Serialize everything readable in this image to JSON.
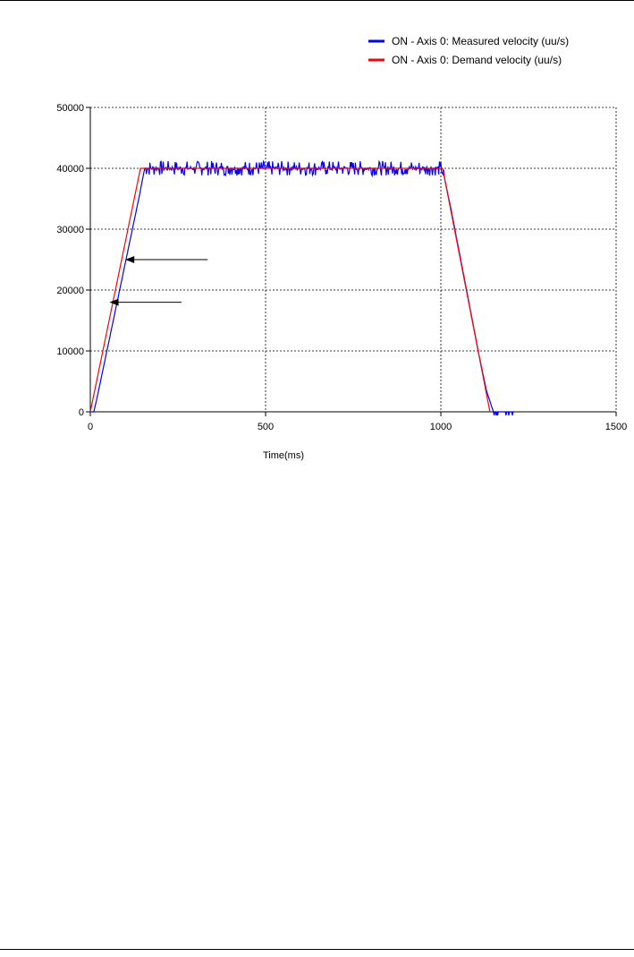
{
  "chart_data": {
    "type": "line",
    "title": "",
    "xlabel": "Time(ms)",
    "ylabel": "",
    "xlim": [
      0,
      1500
    ],
    "ylim": [
      0,
      50000
    ],
    "xticks": [
      "0",
      "500",
      "1000",
      "1500"
    ],
    "yticks": [
      "0",
      "10000",
      "20000",
      "30000",
      "40000",
      "50000"
    ],
    "grid": true,
    "legend_position": "top-right",
    "series": [
      {
        "name": "ON  - Axis 0: Measured velocity (uu/s)",
        "color": "#0000ff",
        "x": [
          0,
          10,
          20,
          40,
          60,
          80,
          100,
          120,
          140,
          150,
          155,
          160,
          300,
          500,
          700,
          900,
          1000,
          1010,
          1030,
          1050,
          1070,
          1090,
          1110,
          1130,
          1150,
          1180,
          1210
        ],
        "y": [
          0,
          0,
          2500,
          8000,
          13500,
          19000,
          24500,
          30000,
          35500,
          38500,
          40000,
          40000,
          40000,
          40000,
          40000,
          40000,
          40000,
          38500,
          33000,
          27000,
          21000,
          15000,
          9000,
          3500,
          0,
          0,
          0
        ],
        "noise_amplitude": 1200,
        "noise_range": [
          155,
          1010
        ]
      },
      {
        "name": "ON  - Axis 0: Demand velocity (uu/s)",
        "color": "#ff0000",
        "x": [
          0,
          143,
          1005,
          1140
        ],
        "y": [
          0,
          40000,
          40000,
          0
        ]
      }
    ],
    "annotations": [
      {
        "type": "arrow",
        "from": [
          335,
          25000
        ],
        "to": [
          100,
          25000
        ]
      },
      {
        "type": "arrow",
        "from": [
          260,
          18000
        ],
        "to": [
          55,
          18000
        ]
      }
    ]
  }
}
